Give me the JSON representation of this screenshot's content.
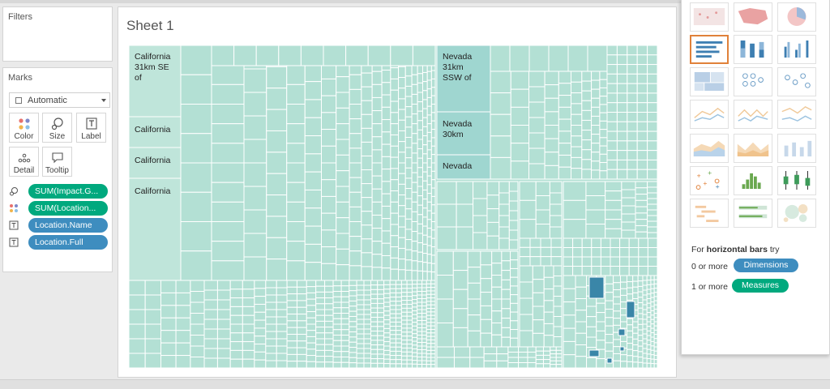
{
  "panels": {
    "filters_title": "Filters",
    "marks_title": "Marks"
  },
  "marks": {
    "mark_type": "Automatic",
    "buttons": {
      "color": "Color",
      "size": "Size",
      "label": "Label",
      "detail": "Detail",
      "tooltip": "Tooltip"
    },
    "fields": [
      {
        "text": "SUM(Impact.G...",
        "kind": "size",
        "color": "#00a97e"
      },
      {
        "text": "SUM(Location...",
        "kind": "color",
        "color": "#00a97e"
      },
      {
        "text": "Location.Name",
        "kind": "label",
        "color": "#3e8dbf"
      },
      {
        "text": "Location.Full",
        "kind": "label",
        "color": "#3e8dbf"
      }
    ]
  },
  "sheet": {
    "title": "Sheet 1",
    "labels": {
      "ca1": [
        "California",
        "31km SE",
        "of"
      ],
      "ca2": "California",
      "ca3": "California",
      "ca4": "California",
      "nv1": [
        "Nevada",
        "31km",
        "SSW of"
      ],
      "nv2": [
        "Nevada",
        "30km"
      ],
      "nv3": "Nevada"
    },
    "colors": {
      "base": "#b3e0d4",
      "light": "#bfe5da",
      "mid": "#9fd6d0",
      "dark": "#3a86a8",
      "grid": "#ffffff"
    }
  },
  "show_me": {
    "selected": "horizontal-bars",
    "hint_prefix": "For ",
    "hint_bold": "horizontal bars",
    "hint_suffix": " try",
    "dims_prefix": "0 or more",
    "dims_pill": "Dimensions",
    "meas_prefix": "1 or more",
    "meas_pill": "Measures"
  }
}
